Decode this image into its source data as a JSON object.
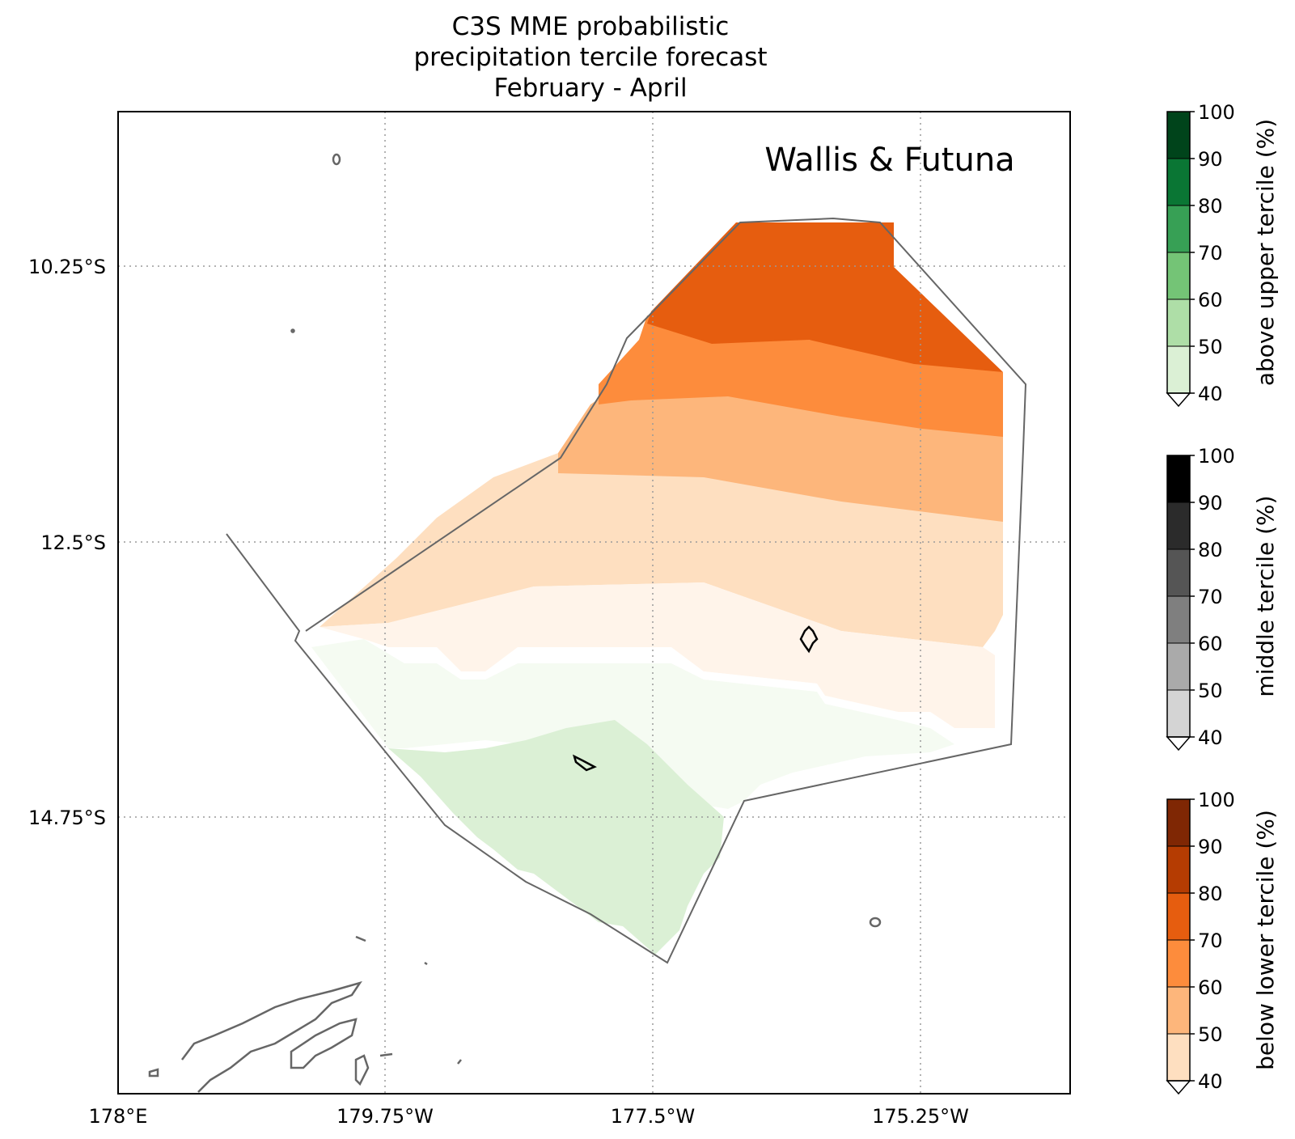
{
  "title": {
    "line1": "C3S MME probabilistic",
    "line2": "precipitation tercile forecast",
    "line3": "February - April"
  },
  "map": {
    "region_label": "Wallis & Futuna",
    "x_ticks": [
      "178°E",
      "179.75°W",
      "177.5°W",
      "175.25°W"
    ],
    "y_ticks": [
      "10.25°S",
      "12.5°S",
      "14.75°S"
    ],
    "gridlines": true
  },
  "colorbars": [
    {
      "label": "above upper tercile (%)",
      "ticks": [
        "100",
        "90",
        "80",
        "70",
        "60",
        "50",
        "40"
      ],
      "colors": [
        "#00441b",
        "#0a7634",
        "#37a055",
        "#74c476",
        "#aedea7",
        "#dbf0d5"
      ]
    },
    {
      "label": "middle tercile (%)",
      "ticks": [
        "100",
        "90",
        "80",
        "70",
        "60",
        "50",
        "40"
      ],
      "colors": [
        "#000000",
        "#2b2b2b",
        "#555555",
        "#7f7f7f",
        "#aaaaaa",
        "#d4d4d4"
      ]
    },
    {
      "label": "below lower tercile (%)",
      "ticks": [
        "100",
        "90",
        "80",
        "70",
        "60",
        "50",
        "40"
      ],
      "colors": [
        "#7f2704",
        "#b53c02",
        "#e65d0f",
        "#fd8c3c",
        "#fdb67b",
        "#fedfc0"
      ]
    }
  ],
  "fill_colors": {
    "below_70_80": "#e65d0f",
    "below_60_70": "#fd8c3c",
    "below_50_60": "#fdb67b",
    "below_40_50": "#fedfc0",
    "below_under_40": "#fff4ea",
    "above_under_40": "#f5fbf2",
    "above_40_50": "#dbf0d5",
    "boundary": "#666666",
    "island_outline": "#000000"
  }
}
